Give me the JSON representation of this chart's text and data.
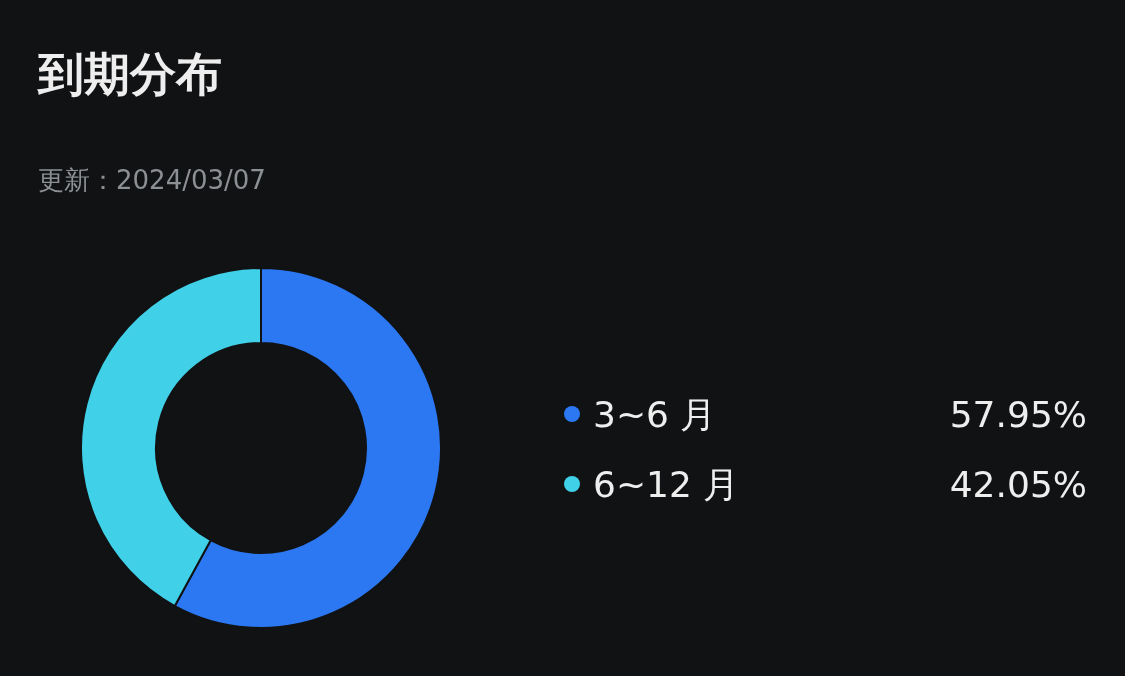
{
  "chart_data": {
    "type": "donut",
    "title": "到期分布",
    "subtitle": "更新：2024/03/07",
    "categories": [
      "3~6 月",
      "6~12 月"
    ],
    "values": [
      57.95,
      42.05
    ],
    "colors": [
      "#2b78f2",
      "#40d0e8"
    ],
    "value_labels": [
      "57.95%",
      "42.05%"
    ],
    "legend": "right"
  }
}
